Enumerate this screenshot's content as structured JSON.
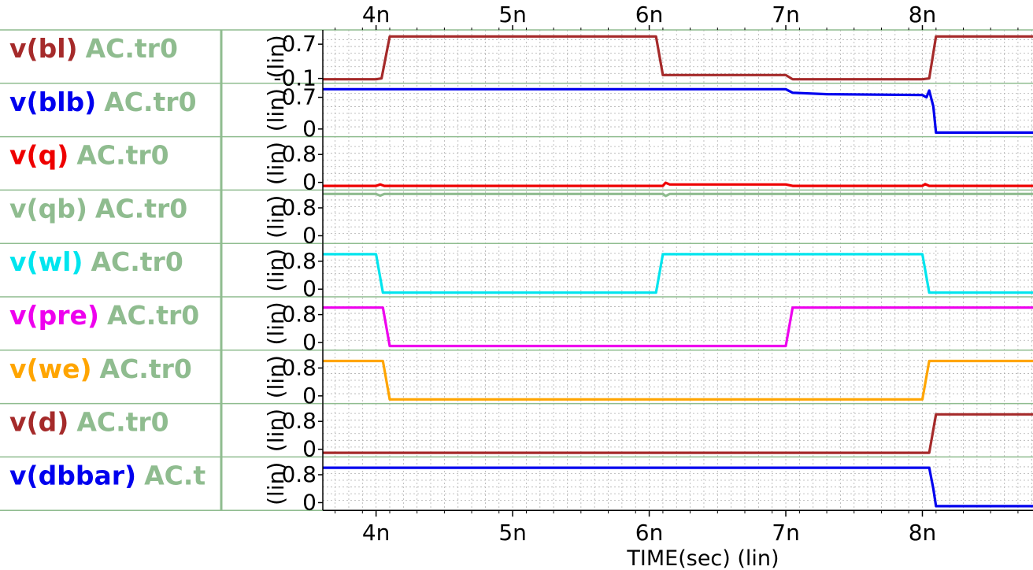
{
  "colors": {
    "background": "#ffffff",
    "panel_divider": "#8fbc8f",
    "grid": "#b0b0b0",
    "source_label": "#8fbc8f"
  },
  "x_axis": {
    "title": "TIME(sec) (lin)",
    "tick_labels": [
      "4n",
      "5n",
      "6n",
      "7n",
      "8n"
    ]
  },
  "chart_data": {
    "type": "line",
    "xlabel": "TIME(sec) (lin)",
    "xlim": [
      3.61,
      8.81
    ],
    "x_unit": "ns",
    "x_ticks": [
      4,
      5,
      6,
      7,
      8
    ],
    "x_tick_labels": [
      "4n",
      "5n",
      "6n",
      "7n",
      "8n"
    ],
    "grid": true,
    "series": [
      {
        "name": "v(bl)",
        "source": "AC.tr0",
        "color": "#a52a2a",
        "ylabel": "(lin)",
        "ylim": [
          -0.14,
          0.96
        ],
        "tick_values": [
          0.7,
          -0.1
        ],
        "tick_labels": [
          "0.7",
          "-0.1"
        ],
        "x": [
          3.61,
          4.0,
          4.04,
          4.1,
          6.05,
          6.1,
          7.0,
          7.05,
          8.0,
          8.05,
          8.1,
          8.81
        ],
        "y": [
          -0.12,
          -0.12,
          -0.1,
          0.88,
          0.88,
          -0.02,
          -0.02,
          -0.12,
          -0.12,
          -0.1,
          0.88,
          0.88
        ]
      },
      {
        "name": "v(blb)",
        "source": "AC.tr0",
        "color": "#0000ee",
        "ylabel": "(lin)",
        "ylim": [
          -0.1,
          0.94
        ],
        "tick_values": [
          0.7,
          0
        ],
        "tick_labels": [
          "0.7",
          "0"
        ],
        "x": [
          3.61,
          7.0,
          7.05,
          7.3,
          8.0,
          8.03,
          8.05,
          8.08,
          8.1,
          8.81
        ],
        "y": [
          0.88,
          0.88,
          0.8,
          0.77,
          0.75,
          0.7,
          0.85,
          0.5,
          -0.08,
          -0.08
        ]
      },
      {
        "name": "v(q)",
        "source": "AC.tr0",
        "color": "#ee0000",
        "ylabel": "(lin)",
        "ylim": [
          -0.13,
          1.22
        ],
        "tick_values": [
          0.8,
          0
        ],
        "tick_labels": [
          "0.8",
          "0"
        ],
        "x": [
          3.61,
          4.0,
          4.03,
          4.06,
          6.1,
          6.12,
          6.15,
          7.0,
          7.05,
          8.0,
          8.02,
          8.05,
          8.81
        ],
        "y": [
          -0.1,
          -0.1,
          -0.06,
          -0.1,
          -0.1,
          -0.01,
          -0.06,
          -0.06,
          -0.1,
          -0.1,
          -0.05,
          -0.1,
          -0.1
        ]
      },
      {
        "name": "v(qb)",
        "source": "AC.tr0",
        "color": "#8fbc8f",
        "ylabel": "(lin)",
        "ylim": [
          -0.13,
          1.22
        ],
        "tick_values": [
          0.8,
          0
        ],
        "tick_labels": [
          "0.8",
          "0"
        ],
        "x": [
          3.61,
          4.0,
          4.03,
          4.06,
          6.1,
          6.12,
          6.15,
          7.0,
          8.81
        ],
        "y": [
          1.2,
          1.2,
          1.15,
          1.2,
          1.2,
          1.14,
          1.2,
          1.2,
          1.2
        ]
      },
      {
        "name": "v(wl)",
        "source": "AC.tr0",
        "color": "#00e5ee",
        "ylabel": "(lin)",
        "ylim": [
          -0.13,
          1.22
        ],
        "tick_values": [
          0.8,
          0
        ],
        "tick_labels": [
          "0.8",
          "0"
        ],
        "x": [
          3.61,
          4.0,
          4.05,
          6.05,
          6.1,
          8.0,
          8.05,
          8.81
        ],
        "y": [
          1.0,
          1.0,
          -0.1,
          -0.1,
          1.0,
          1.0,
          -0.1,
          -0.1
        ]
      },
      {
        "name": "v(pre)",
        "source": "AC.tr0",
        "color": "#ee00ee",
        "ylabel": "(lin)",
        "ylim": [
          -0.13,
          1.22
        ],
        "tick_values": [
          0.8,
          0
        ],
        "tick_labels": [
          "0.8",
          "0"
        ],
        "x": [
          3.61,
          4.05,
          4.1,
          7.0,
          7.05,
          8.81
        ],
        "y": [
          1.0,
          1.0,
          -0.1,
          -0.1,
          1.0,
          1.0
        ]
      },
      {
        "name": "v(we)",
        "source": "AC.tr0",
        "color": "#ffa500",
        "ylabel": "(lin)",
        "ylim": [
          -0.13,
          1.22
        ],
        "tick_values": [
          0.8,
          0
        ],
        "tick_labels": [
          "0.8",
          "0"
        ],
        "x": [
          3.61,
          4.05,
          4.1,
          8.0,
          8.05,
          8.81
        ],
        "y": [
          1.0,
          1.0,
          -0.1,
          -0.1,
          1.0,
          1.0
        ]
      },
      {
        "name": "v(d)",
        "source": "AC.tr0",
        "color": "#a52a2a",
        "ylabel": "(lin)",
        "ylim": [
          -0.13,
          1.22
        ],
        "tick_values": [
          0.8,
          0
        ],
        "tick_labels": [
          "0.8",
          "0"
        ],
        "x": [
          3.61,
          8.05,
          8.1,
          8.81
        ],
        "y": [
          -0.1,
          -0.1,
          1.0,
          1.0
        ]
      },
      {
        "name": "v(dbbar)",
        "source": "AC.t",
        "color": "#0000ee",
        "ylabel": "(lin)",
        "ylim": [
          -0.13,
          1.22
        ],
        "tick_values": [
          0.8,
          0
        ],
        "tick_labels": [
          "0.8",
          "0"
        ],
        "x": [
          3.61,
          8.05,
          8.08,
          8.1,
          8.81
        ],
        "y": [
          1.0,
          1.0,
          0.4,
          -0.1,
          -0.1
        ]
      }
    ]
  }
}
